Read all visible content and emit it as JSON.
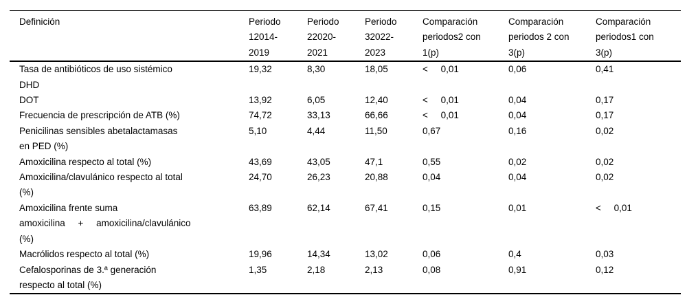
{
  "table": {
    "header": [
      "Definición",
      "Periodo\n12014-\n2019",
      "Periodo\n22020-\n2021",
      "Periodo\n32022-\n2023",
      "Comparación\nperiodos2 con\n1(p)",
      "Comparación\nperiodos 2 con\n3(p)",
      "Comparación\nperiodos1 con\n3(p)"
    ],
    "rows": [
      [
        "Tasa de antibióticos de uso sistémico\nDHD",
        "19,32",
        "8,30",
        "18,05",
        "<     0,01",
        "0,06",
        "0,41"
      ],
      [
        "DOT",
        "13,92",
        "6,05",
        "12,40",
        "<     0,01",
        "0,04",
        "0,17"
      ],
      [
        "Frecuencia de prescripción de ATB (%)",
        "74,72",
        "33,13",
        "66,66",
        "<     0,01",
        "0,04",
        "0,17"
      ],
      [
        "Penicilinas sensibles abetalactamasas\nen PED (%)",
        "5,10",
        "4,44",
        "11,50",
        "0,67",
        "0,16",
        "0,02"
      ],
      [
        "Amoxicilina respecto al total (%)",
        "43,69",
        "43,05",
        "47,1",
        "0,55",
        "0,02",
        "0,02"
      ],
      [
        "Amoxicilina/clavulánico respecto al total\n(%)",
        "24,70",
        "26,23",
        "20,88",
        "0,04",
        "0,04",
        "0,02"
      ],
      [
        "Amoxicilina frente suma\namoxicilina     +     amoxicilina/clavulánico\n(%)",
        "63,89",
        "62,14",
        "67,41",
        "0,15",
        "0,01",
        "<     0,01"
      ],
      [
        "Macrólidos respecto al total (%)",
        "19,96",
        "14,34",
        "13,02",
        "0,06",
        "0,4",
        "0,03"
      ],
      [
        "Cefalosporinas de 3.ª generación\nrespecto al total (%)",
        "1,35",
        "2,18",
        "2,13",
        "0,08",
        "0,91",
        "0,12"
      ]
    ]
  },
  "chart_data": {
    "type": "table",
    "columns": [
      "Definición",
      "Periodo 12014-2019",
      "Periodo 22020-2021",
      "Periodo 32022-2023",
      "Comparación periodos2 con 1(p)",
      "Comparación periodos 2 con 3(p)",
      "Comparación periodos1 con 3(p)"
    ],
    "rows": [
      [
        "Tasa de antibióticos de uso sistémico DHD",
        "19,32",
        "8,30",
        "18,05",
        "< 0,01",
        "0,06",
        "0,41"
      ],
      [
        "DOT",
        "13,92",
        "6,05",
        "12,40",
        "< 0,01",
        "0,04",
        "0,17"
      ],
      [
        "Frecuencia de prescripción de ATB (%)",
        "74,72",
        "33,13",
        "66,66",
        "< 0,01",
        "0,04",
        "0,17"
      ],
      [
        "Penicilinas sensibles abetalactamasas en PED (%)",
        "5,10",
        "4,44",
        "11,50",
        "0,67",
        "0,16",
        "0,02"
      ],
      [
        "Amoxicilina respecto al total (%)",
        "43,69",
        "43,05",
        "47,1",
        "0,55",
        "0,02",
        "0,02"
      ],
      [
        "Amoxicilina/clavulánico respecto al total (%)",
        "24,70",
        "26,23",
        "20,88",
        "0,04",
        "0,04",
        "0,02"
      ],
      [
        "Amoxicilina frente suma amoxicilina + amoxicilina/clavulánico (%)",
        "63,89",
        "62,14",
        "67,41",
        "0,15",
        "0,01",
        "< 0,01"
      ],
      [
        "Macrólidos respecto al total (%)",
        "19,96",
        "14,34",
        "13,02",
        "0,06",
        "0,4",
        "0,03"
      ],
      [
        "Cefalosporinas de 3.ª generación respecto al total (%)",
        "1,35",
        "2,18",
        "2,13",
        "0,08",
        "0,91",
        "0,12"
      ]
    ]
  }
}
